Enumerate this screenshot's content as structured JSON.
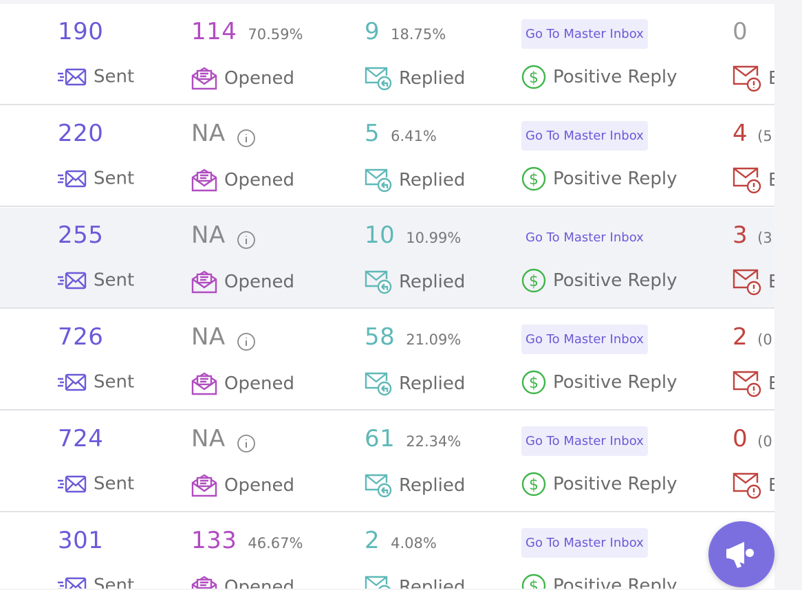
{
  "rows": [
    {
      "sent": "190",
      "sent_label": "Sent",
      "opened": "114",
      "opened_pct": "70.59%",
      "opened_label": "Opened",
      "replied": "9",
      "replied_pct": "18.75%",
      "replied_label": "Replied",
      "button": "Go To Master Inbox",
      "positive_label": "Positive Reply",
      "bounced": "0",
      "bounced_label": "Bounced"
    },
    {
      "sent": "220",
      "sent_label": "Sent",
      "opened": "NA",
      "opened_label": "Opened",
      "replied": "5",
      "replied_pct": "6.41%",
      "replied_label": "Replied",
      "button": "Go To Master Inbox",
      "positive_label": "Positive Reply",
      "bounced": "4",
      "bounced_extra": "(5",
      "bounced_label": "Bounced"
    },
    {
      "sent": "255",
      "sent_label": "Sent",
      "opened": "NA",
      "opened_label": "Opened",
      "replied": "10",
      "replied_pct": "10.99%",
      "replied_label": "Replied",
      "button": "Go To Master Inbox",
      "positive_label": "Positive Reply",
      "bounced": "3",
      "bounced_extra": "(3",
      "bounced_label": "Bounced"
    },
    {
      "sent": "726",
      "sent_label": "Sent",
      "opened": "NA",
      "opened_label": "Opened",
      "replied": "58",
      "replied_pct": "21.09%",
      "replied_label": "Replied",
      "button": "Go To Master Inbox",
      "positive_label": "Positive Reply",
      "bounced": "2",
      "bounced_extra": "(0",
      "bounced_label": "Bounced"
    },
    {
      "sent": "724",
      "sent_label": "Sent",
      "opened": "NA",
      "opened_label": "Opened",
      "replied": "61",
      "replied_pct": "22.34%",
      "replied_label": "Replied",
      "button": "Go To Master Inbox",
      "positive_label": "Positive Reply",
      "bounced": "0",
      "bounced_extra": "(0",
      "bounced_label": "Bounced"
    },
    {
      "sent": "301",
      "sent_label": "Sent",
      "opened": "133",
      "opened_pct": "46.67%",
      "opened_label": "Opened",
      "replied": "2",
      "replied_pct": "4.08%",
      "replied_label": "Replied",
      "button": "Go To Master Inbox",
      "positive_label": "Positive Reply"
    }
  ]
}
